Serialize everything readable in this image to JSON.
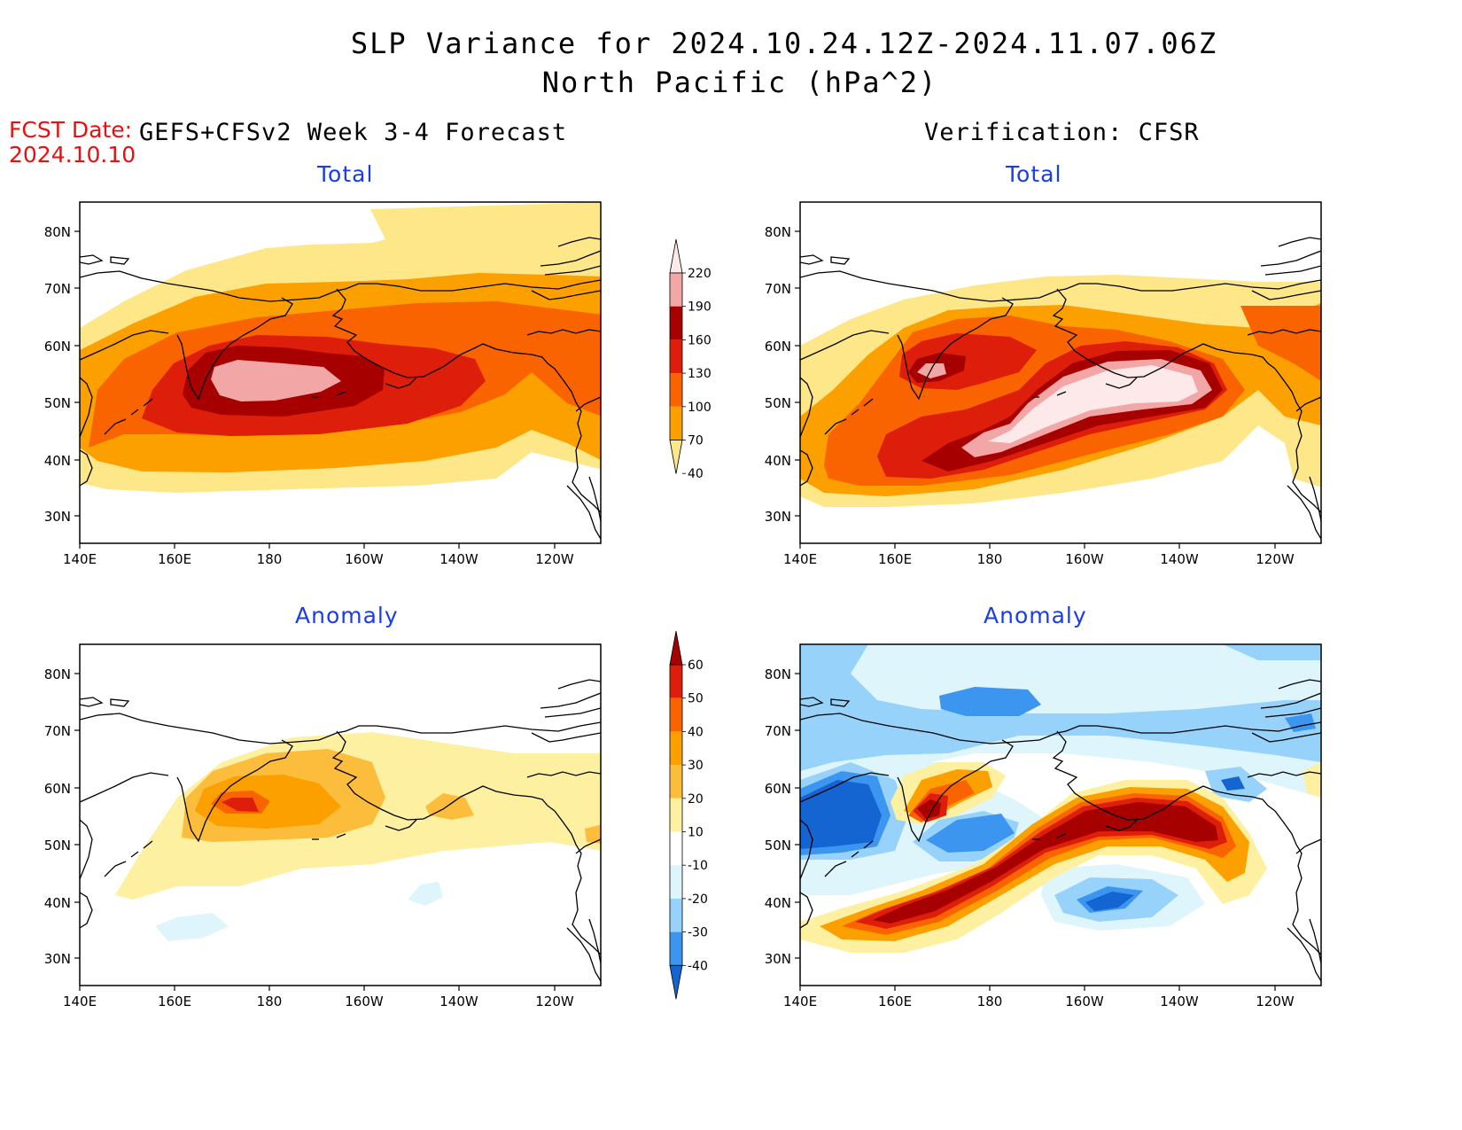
{
  "title": {
    "line1": "SLP Variance for 2024.10.24.12Z-2024.11.07.06Z",
    "line2": "North Pacific (hPa^2)"
  },
  "fcst": {
    "label": "FCST Date:",
    "date": "2024.10.10"
  },
  "headers": {
    "forecast": "GEFS+CFSv2 Week 3-4 Forecast",
    "verification": "Verification: CFSR"
  },
  "panel_titles": {
    "total": "Total",
    "anomaly": "Anomaly"
  },
  "axes": {
    "lat_ticks": [
      "80N",
      "70N",
      "60N",
      "50N",
      "40N",
      "30N"
    ],
    "lon_ticks": [
      "140E",
      "160E",
      "180",
      "160W",
      "140W",
      "120W"
    ]
  },
  "colorbars": {
    "total": {
      "labels": [
        "220",
        "190",
        "160",
        "130",
        "100",
        "70",
        "40"
      ],
      "colors": [
        "#fde9e9",
        "#f2a6a6",
        "#a60000",
        "#dc1e0a",
        "#fa6400",
        "#fca000",
        "#fde788"
      ]
    },
    "anomaly": {
      "labels": [
        "60",
        "50",
        "40",
        "30",
        "20",
        "10",
        "-10",
        "-20",
        "-30",
        "-40"
      ],
      "colors": [
        "#a60000",
        "#dc1e0a",
        "#fa6400",
        "#fca000",
        "#fcbd3c",
        "#fdf0a0",
        "#ffffff",
        "#def5fc",
        "#96d2fa",
        "#3c96f0",
        "#1464d2"
      ]
    }
  }
}
